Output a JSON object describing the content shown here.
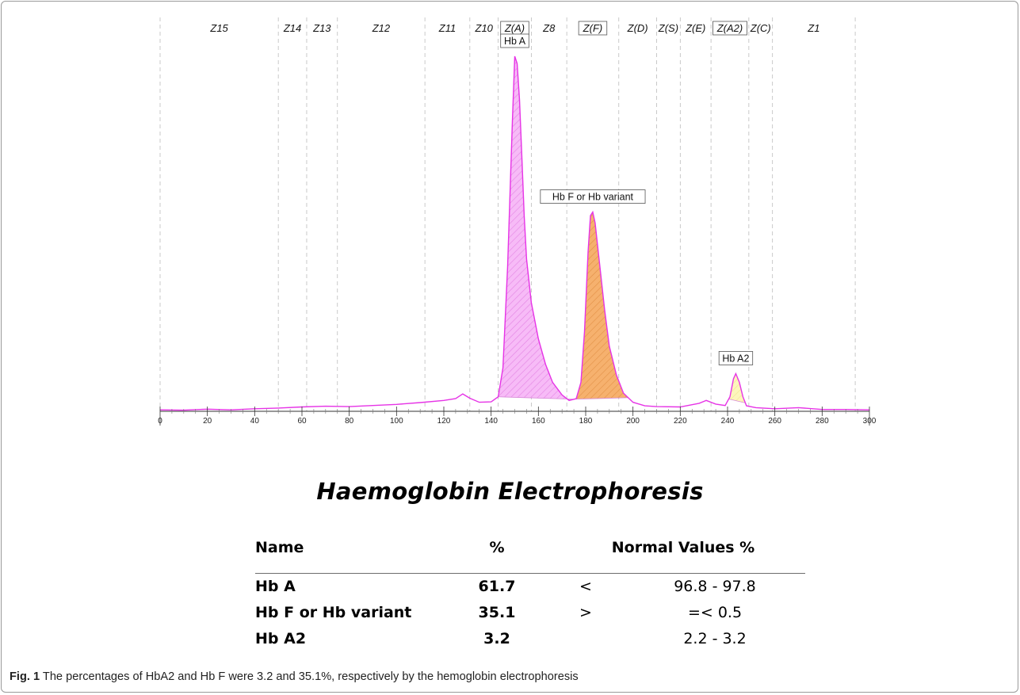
{
  "caption": {
    "prefix": "Fig. 1",
    "text": "The percentages of HbA2 and Hb F were 3.2 and 35.1%, respectively by the hemoglobin electrophoresis"
  },
  "title": "Haemoglobin Electrophoresis",
  "table": {
    "headers": {
      "name": "Name",
      "pct": "%",
      "normal": "Normal Values %"
    },
    "rows": [
      {
        "name": "Hb A",
        "pct": "61.7",
        "op": "<",
        "normal": "96.8 - 97.8"
      },
      {
        "name": "Hb F or Hb variant",
        "pct": "35.1",
        "op": ">",
        "normal": "=<  0.5"
      },
      {
        "name": "Hb A2",
        "pct": "3.2",
        "op": "",
        "normal": "2.2 -  3.2"
      }
    ]
  },
  "chart_data": {
    "type": "area",
    "x_range": [
      0,
      300
    ],
    "x_ticks": [
      0,
      20,
      40,
      60,
      80,
      100,
      120,
      140,
      160,
      180,
      200,
      220,
      240,
      260,
      280,
      300
    ],
    "grid": false,
    "zones": [
      {
        "label": "Z15",
        "from": 0,
        "to": 50
      },
      {
        "label": "Z14",
        "from": 50,
        "to": 62
      },
      {
        "label": "Z13",
        "from": 62,
        "to": 75
      },
      {
        "label": "Z12",
        "from": 75,
        "to": 112
      },
      {
        "label": "Z11",
        "from": 112,
        "to": 131
      },
      {
        "label": "Z10",
        "from": 131,
        "to": 143
      },
      {
        "label": "Z(A)",
        "from": 143,
        "to": 157,
        "boxed": true
      },
      {
        "label": "Z8",
        "from": 157,
        "to": 172
      },
      {
        "label": "Z(F)",
        "from": 172,
        "to": 194,
        "boxed": true
      },
      {
        "label": "Z(D)",
        "from": 194,
        "to": 210
      },
      {
        "label": "Z(S)",
        "from": 210,
        "to": 220
      },
      {
        "label": "Z(E)",
        "from": 220,
        "to": 233
      },
      {
        "label": "Z(A2)",
        "from": 233,
        "to": 249,
        "boxed": true
      },
      {
        "label": "Z(C)",
        "from": 249,
        "to": 259
      },
      {
        "label": "Z1",
        "from": 259,
        "to": 294
      }
    ],
    "trace": [
      [
        0,
        0.4
      ],
      [
        10,
        0.3
      ],
      [
        20,
        0.6
      ],
      [
        30,
        0.4
      ],
      [
        40,
        0.7
      ],
      [
        50,
        0.9
      ],
      [
        60,
        1.2
      ],
      [
        70,
        1.4
      ],
      [
        80,
        1.3
      ],
      [
        90,
        1.6
      ],
      [
        100,
        1.9
      ],
      [
        110,
        2.4
      ],
      [
        120,
        3.0
      ],
      [
        125,
        3.5
      ],
      [
        128,
        4.8
      ],
      [
        131,
        3.6
      ],
      [
        135,
        2.5
      ],
      [
        140,
        2.6
      ],
      [
        143,
        4
      ],
      [
        145,
        12
      ],
      [
        147,
        40
      ],
      [
        149,
        80
      ],
      [
        150,
        98
      ],
      [
        151,
        96
      ],
      [
        152,
        86
      ],
      [
        153,
        70
      ],
      [
        154,
        54
      ],
      [
        155,
        42
      ],
      [
        157,
        30
      ],
      [
        160,
        20
      ],
      [
        163,
        13
      ],
      [
        166,
        8
      ],
      [
        170,
        4.5
      ],
      [
        173,
        3
      ],
      [
        176,
        3.5
      ],
      [
        178,
        8
      ],
      [
        179.5,
        22
      ],
      [
        181,
        44
      ],
      [
        182,
        54
      ],
      [
        183,
        55
      ],
      [
        184,
        52
      ],
      [
        186,
        40
      ],
      [
        188,
        28
      ],
      [
        190,
        18
      ],
      [
        193,
        10
      ],
      [
        196,
        5
      ],
      [
        200,
        2.5
      ],
      [
        205,
        1.5
      ],
      [
        210,
        1.3
      ],
      [
        220,
        1.2
      ],
      [
        228,
        2.2
      ],
      [
        231,
        3.0
      ],
      [
        235,
        2.0
      ],
      [
        239,
        1.6
      ],
      [
        241,
        4
      ],
      [
        242.5,
        9
      ],
      [
        243.5,
        10.4
      ],
      [
        245,
        8
      ],
      [
        246.5,
        4
      ],
      [
        248,
        1.5
      ],
      [
        252,
        1.0
      ],
      [
        260,
        0.7
      ],
      [
        270,
        1.0
      ],
      [
        280,
        0.5
      ],
      [
        290,
        0.5
      ],
      [
        300,
        0.4
      ]
    ],
    "peaks": [
      {
        "label": "Hb A",
        "apex_x": 150,
        "from": 143,
        "to": 175,
        "color": "#f29ef2"
      },
      {
        "label": "Hb F or Hb variant",
        "apex_x": 183,
        "from": 175,
        "to": 198,
        "color": "#f4a253"
      },
      {
        "label": "Hb A2",
        "apex_x": 243.5,
        "from": 240.5,
        "to": 247.5,
        "color": "#fbf3a7"
      }
    ],
    "trace_color": "#e633e6"
  }
}
